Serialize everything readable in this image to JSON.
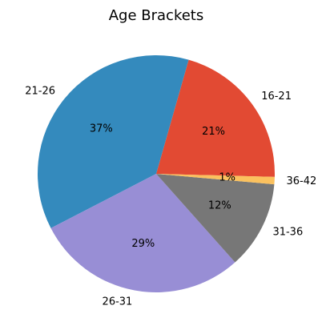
{
  "chart_data": {
    "type": "pie",
    "title": "Age Brackets",
    "categories": [
      "16-21",
      "21-26",
      "26-31",
      "31-36",
      "36-42"
    ],
    "values": [
      21,
      37,
      29,
      12,
      1
    ],
    "percent_labels": [
      "21%",
      "37%",
      "29%",
      "12%",
      "1%"
    ],
    "colors": [
      "#e24a33",
      "#348abd",
      "#988ed5",
      "#777777",
      "#fbc15e"
    ],
    "start_angle_deg": -1.5,
    "direction": "counterclockwise",
    "legend": "none"
  }
}
